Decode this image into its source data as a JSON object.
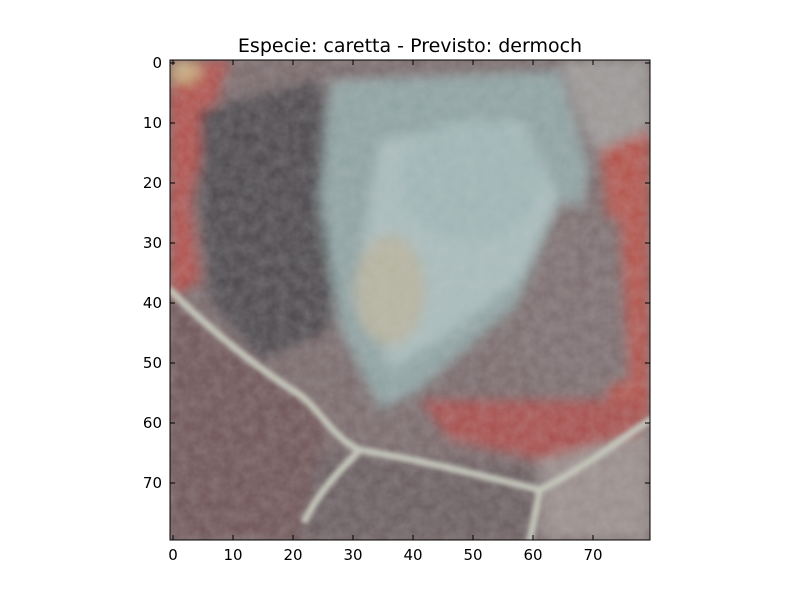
{
  "figure": {
    "title": "Especie: caretta - Previsto: dermoch",
    "xlim": [
      -0.5,
      79.5
    ],
    "ylim": [
      79.5,
      -0.5
    ],
    "x_ticks": [
      0,
      10,
      20,
      30,
      40,
      50,
      60,
      70
    ],
    "y_ticks": [
      0,
      10,
      20,
      30,
      40,
      50,
      60,
      70
    ],
    "x_tick_labels": [
      "0",
      "10",
      "20",
      "30",
      "40",
      "50",
      "60",
      "70"
    ],
    "y_tick_labels": [
      "0",
      "10",
      "20",
      "30",
      "40",
      "50",
      "60",
      "70"
    ]
  },
  "image_description_colors": {
    "frame": "#000000",
    "background": "#ffffff"
  }
}
